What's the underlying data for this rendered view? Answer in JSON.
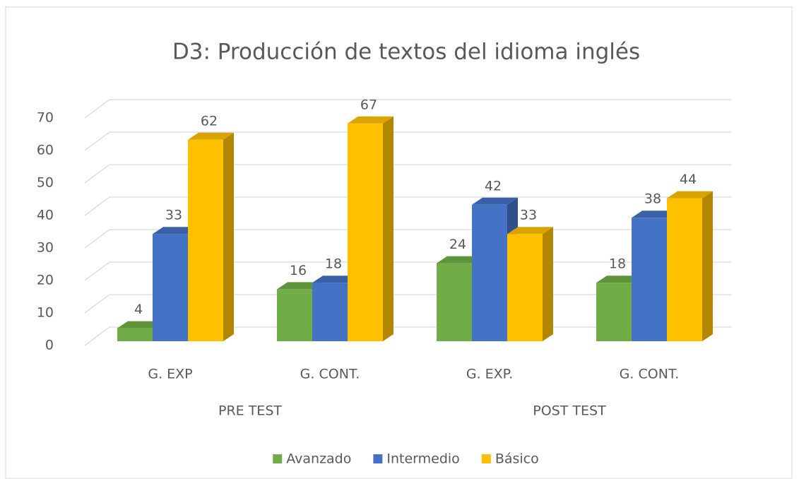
{
  "chart_data": {
    "type": "bar3d",
    "title": "D3: Producción de textos del idioma inglés",
    "categories": [
      "G. EXP",
      "G. CONT.",
      "G. EXP.",
      "G. CONT."
    ],
    "category_groups": [
      "PRE TEST",
      "POST TEST"
    ],
    "series": [
      {
        "name": "Avanzado",
        "color": "#70ad47",
        "values": [
          4,
          16,
          24,
          18
        ]
      },
      {
        "name": "Intermedio",
        "color": "#4472c4",
        "values": [
          33,
          18,
          42,
          38
        ]
      },
      {
        "name": "Básico",
        "color": "#ffc000",
        "values": [
          62,
          67,
          33,
          44
        ]
      }
    ],
    "ylim": [
      0,
      70
    ],
    "yticks": [
      0,
      10,
      20,
      30,
      40,
      50,
      60,
      70
    ],
    "grid": true,
    "legend": "bottom"
  }
}
